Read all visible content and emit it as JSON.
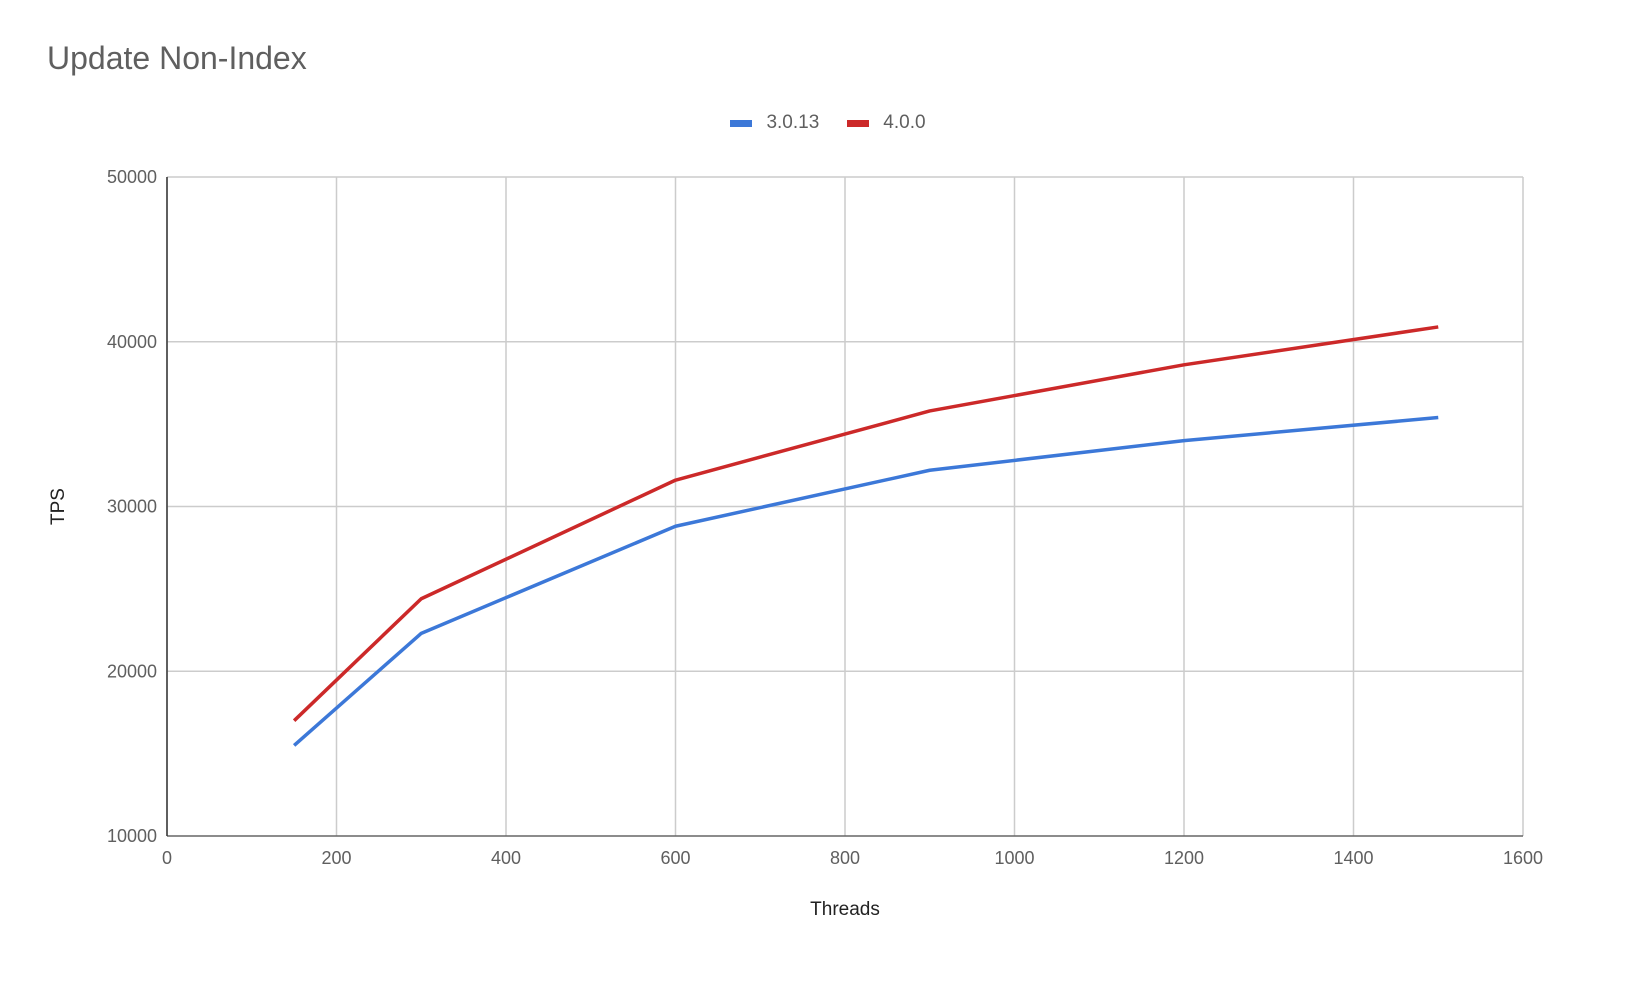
{
  "chart_data": {
    "type": "line",
    "title": "Update Non-Index",
    "xlabel": "Threads",
    "ylabel": "TPS",
    "xlim": [
      0,
      1600
    ],
    "ylim": [
      10000,
      50000
    ],
    "x_ticks": [
      "0",
      "200",
      "400",
      "600",
      "800",
      "1000",
      "1200",
      "1400",
      "1600"
    ],
    "y_ticks": [
      "10000",
      "20000",
      "30000",
      "40000",
      "50000"
    ],
    "grid": true,
    "legend_position": "top",
    "x": [
      150,
      300,
      600,
      900,
      1200,
      1500
    ],
    "series": [
      {
        "name": "3.0.13",
        "color": "#3c78d8",
        "values": [
          15500,
          22300,
          28800,
          32200,
          34000,
          35400
        ]
      },
      {
        "name": "4.0.0",
        "color": "#cc2929",
        "values": [
          17000,
          24400,
          31600,
          35800,
          38600,
          40900
        ]
      }
    ]
  }
}
